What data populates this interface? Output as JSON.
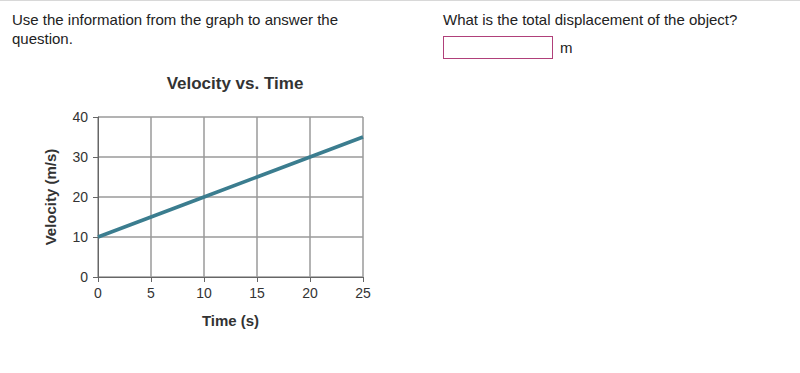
{
  "page": {
    "instructions": "Use the information from the graph to answer the question.",
    "question": "What is the total displacement of the object?",
    "unit": "m"
  },
  "chart_data": {
    "type": "line",
    "title": "Velocity vs. Time",
    "x_label": "Time (s)",
    "y_label": "Velocity (m/s)",
    "x": [
      0,
      5,
      10,
      15,
      20,
      25
    ],
    "values": [
      10,
      15,
      20,
      25,
      30,
      35
    ],
    "color": "#3b7d8f",
    "xlim": [
      0,
      25
    ],
    "xticks": [
      0,
      5,
      10,
      15,
      20,
      25
    ],
    "ylim": [
      0,
      40
    ],
    "yticks": [
      0,
      10,
      20,
      30,
      40
    ],
    "grid": true
  }
}
